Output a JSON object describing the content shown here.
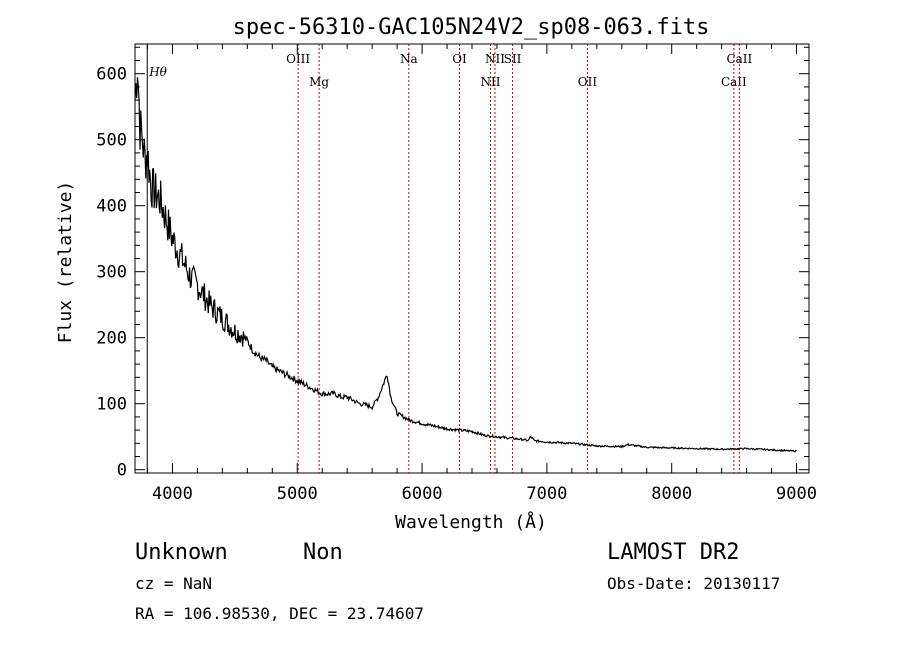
{
  "chart_data": {
    "type": "line",
    "title": "spec-56310-GAC105N24V2_sp08-063.fits",
    "xlabel": "Wavelength (Å)",
    "ylabel": "Flux (relative)",
    "xlim": [
      3700,
      9100
    ],
    "ylim": [
      -5,
      645
    ],
    "xticks": [
      4000,
      5000,
      6000,
      7000,
      8000,
      9000
    ],
    "yticks": [
      0,
      100,
      200,
      300,
      400,
      500,
      600
    ],
    "grid": false,
    "series": [
      {
        "x": [
          3700,
          3720,
          3740,
          3760,
          3780,
          3800,
          3830,
          3860,
          3900,
          3950,
          4000,
          4050,
          4100,
          4150,
          4200,
          4250,
          4300,
          4350,
          4400,
          4450,
          4500,
          4550,
          4600,
          4650,
          4700,
          4750,
          4800,
          4850,
          4900,
          4950,
          5000,
          5050,
          5100,
          5150,
          5200,
          5250,
          5300,
          5350,
          5400,
          5450,
          5500,
          5550,
          5600,
          5650,
          5700,
          5720,
          5750,
          5800,
          5850,
          5900,
          6000,
          6100,
          6200,
          6300,
          6400,
          6500,
          6600,
          6700,
          6800,
          6850,
          6870,
          6900,
          7000,
          7200,
          7400,
          7600,
          7650,
          7800,
          8000,
          8200,
          8400,
          8600,
          8800,
          9000
        ],
        "y": [
          560,
          620,
          520,
          500,
          470,
          480,
          430,
          420,
          410,
          380,
          350,
          330,
          310,
          290,
          280,
          265,
          250,
          240,
          230,
          220,
          210,
          205,
          195,
          180,
          170,
          165,
          155,
          150,
          145,
          140,
          135,
          130,
          125,
          120,
          115,
          115,
          115,
          110,
          110,
          105,
          100,
          98,
          95,
          110,
          135,
          145,
          110,
          85,
          80,
          75,
          70,
          66,
          62,
          60,
          58,
          52,
          50,
          48,
          46,
          44,
          50,
          44,
          42,
          40,
          36,
          35,
          38,
          34,
          33,
          32,
          31,
          32,
          30,
          28
        ]
      }
    ],
    "lines": [
      {
        "label": "Hθ",
        "x": 3798
      },
      {
        "label": "OIII",
        "x": 5007
      },
      {
        "label": "Mg",
        "x": 5175
      },
      {
        "label": "Na",
        "x": 5894
      },
      {
        "label": "OI",
        "x": 6300
      },
      {
        "label": "NII",
        "x": 6548
      },
      {
        "label": "NII",
        "x": 6584
      },
      {
        "label": "OII",
        "x": 7325
      },
      {
        "label": "SII",
        "x": 6725
      },
      {
        "label": "CaII",
        "x": 8498
      },
      {
        "label": "CaII",
        "x": 8542
      }
    ]
  },
  "info": {
    "class": "Unknown",
    "subclass": "Non",
    "cz": "cz = NaN",
    "coords": "RA = 106.98530, DEC =  23.74607",
    "survey": "LAMOST DR2",
    "obs_date": "Obs-Date: 20130117"
  }
}
